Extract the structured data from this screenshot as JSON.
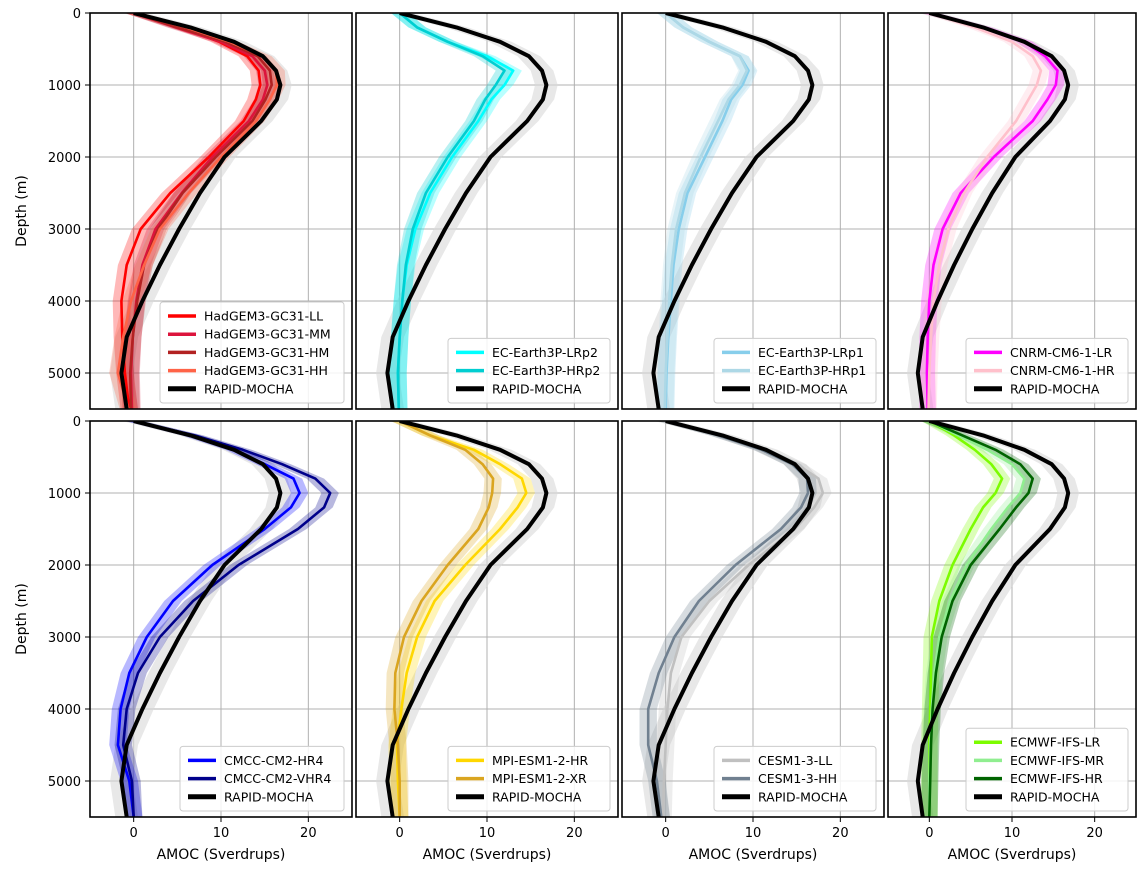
{
  "chart_data": {
    "type": "line",
    "xlabel": "AMOC (Sverdrups)",
    "ylabel": "Depth (m)",
    "xlim": [
      -5,
      25
    ],
    "ylim": [
      5500,
      0
    ],
    "xticks": [
      "0",
      "10",
      "20"
    ],
    "yticks": [
      "0",
      "1000",
      "2000",
      "3000",
      "4000",
      "5000"
    ],
    "grid": true,
    "legend_position": "lower-right",
    "reference": {
      "name": "RAPID-MOCHA",
      "color": "#000000",
      "depth": [
        0,
        200,
        400,
        600,
        800,
        1000,
        1200,
        1500,
        2000,
        2500,
        3000,
        3500,
        4000,
        4500,
        5000,
        5500
      ],
      "values": [
        0,
        6.5,
        11.5,
        14.8,
        16.3,
        16.8,
        16.4,
        14.6,
        10.4,
        7.6,
        5.2,
        3.0,
        1.0,
        -0.8,
        -1.4,
        -0.8
      ]
    },
    "panels": [
      {
        "row": 0,
        "col": 0,
        "series": [
          {
            "name": "HadGEM3-GC31-LL",
            "color": "#ff0000",
            "values": [
              0,
              5.3,
              9.8,
              13.0,
              14.3,
              14.5,
              14.0,
              12.6,
              8.6,
              4.2,
              0.8,
              -0.8,
              -1.4,
              -1.3,
              -1.0,
              -0.5
            ]
          },
          {
            "name": "HadGEM3-GC31-MM",
            "color": "#dc143c",
            "values": [
              0,
              4.8,
              10.0,
              13.6,
              15.0,
              15.3,
              14.8,
              13.2,
              9.0,
              5.5,
              2.5,
              1.0,
              0.3,
              -0.1,
              -0.3,
              -0.2
            ]
          },
          {
            "name": "HadGEM3-GC31-HM",
            "color": "#b22222",
            "values": [
              0,
              5.0,
              10.5,
              14.2,
              15.6,
              15.8,
              15.1,
              13.6,
              9.4,
              5.6,
              2.8,
              1.2,
              0.4,
              -0.1,
              -0.4,
              -0.3
            ]
          },
          {
            "name": "HadGEM3-GC31-HH",
            "color": "#ff6347",
            "values": [
              0,
              6.0,
              11.0,
              14.8,
              16.3,
              16.4,
              15.6,
              14.0,
              10.0,
              6.3,
              3.0,
              1.2,
              -0.3,
              -1.2,
              -1.8,
              -0.6
            ]
          }
        ]
      },
      {
        "row": 0,
        "col": 1,
        "series": [
          {
            "name": "EC-Earth3P-LRp2",
            "color": "#00ffff",
            "values": [
              0,
              2.0,
              5.5,
              10.0,
              13.0,
              12.0,
              10.5,
              9.0,
              6.0,
              3.5,
              1.8,
              0.8,
              0.3,
              0,
              -0.2,
              -0.1
            ]
          },
          {
            "name": "EC-Earth3P-HRp2",
            "color": "#00ced1",
            "values": [
              0,
              2.0,
              5.5,
              9.5,
              12.0,
              11.0,
              9.8,
              8.5,
              5.5,
              3.0,
              1.5,
              0.7,
              0.3,
              0,
              -0.2,
              -0.1
            ]
          }
        ]
      },
      {
        "row": 0,
        "col": 2,
        "series": [
          {
            "name": "EC-Earth3P-LRp1",
            "color": "#87ceeb",
            "values": [
              0,
              2.0,
              5.0,
              8.5,
              9.5,
              8.8,
              7.5,
              6.5,
              4.5,
              2.5,
              1.5,
              0.9,
              0.6,
              0.3,
              0.1,
              0
            ]
          },
          {
            "name": "EC-Earth3P-HRp1",
            "color": "#add8e6",
            "values": [
              0,
              2.0,
              5.0,
              8.5,
              9.3,
              8.5,
              7.2,
              6.0,
              4.0,
              2.2,
              1.2,
              0.7,
              0.4,
              0.2,
              0,
              -0.1
            ]
          }
        ]
      },
      {
        "row": 0,
        "col": 3,
        "series": [
          {
            "name": "CNRM-CM6-1-LR",
            "color": "#ff00ff",
            "values": [
              0,
              6.5,
              11.5,
              14.0,
              15.5,
              15.3,
              14.3,
              12.5,
              7.8,
              3.8,
              1.6,
              0.5,
              0,
              -0.2,
              -0.3,
              -0.2
            ]
          },
          {
            "name": "CNRM-CM6-1-HR",
            "color": "#ffc0cb",
            "values": [
              0,
              5.5,
              10.0,
              12.5,
              13.5,
              13.0,
              12.0,
              10.5,
              7.0,
              4.2,
              2.3,
              1.2,
              0.5,
              0.2,
              0,
              -0.1
            ]
          }
        ]
      },
      {
        "row": 1,
        "col": 0,
        "series": [
          {
            "name": "CMCC-CM2-HR4",
            "color": "#0000ff",
            "values": [
              0,
              6.5,
              11.5,
              15.0,
              18.3,
              19.0,
              18.0,
              15.0,
              9.0,
              4.5,
              1.5,
              -0.5,
              -1.5,
              -1.8,
              -0.5,
              0
            ]
          },
          {
            "name": "CMCC-CM2-VHR4",
            "color": "#00008b",
            "values": [
              0,
              7.0,
              12.5,
              17.0,
              20.8,
              22.5,
              21.8,
              18.8,
              12.0,
              6.8,
              3.0,
              0.5,
              -0.8,
              -1.2,
              -0.2,
              0
            ]
          }
        ]
      },
      {
        "row": 1,
        "col": 1,
        "series": [
          {
            "name": "MPI-ESM1-2-HR",
            "color": "#ffd700",
            "values": [
              0,
              3.5,
              8.5,
              11.5,
              14.0,
              14.5,
              13.5,
              11.5,
              7.5,
              4.0,
              2.0,
              0.8,
              0.2,
              -0.3,
              -0.2,
              0
            ]
          },
          {
            "name": "MPI-ESM1-2-XR",
            "color": "#daa520",
            "values": [
              0,
              3.5,
              7.5,
              9.5,
              10.7,
              10.6,
              10.2,
              9.0,
              5.5,
              2.5,
              0.5,
              -0.5,
              -0.6,
              -0.2,
              0,
              0
            ]
          }
        ]
      },
      {
        "row": 1,
        "col": 2,
        "series": [
          {
            "name": "CESM1-3-LL",
            "color": "#c0c0c0",
            "values": [
              0,
              6.0,
              11.0,
              15.0,
              17.5,
              18.0,
              17.0,
              14.8,
              9.5,
              5.0,
              1.8,
              0.6,
              0.2,
              0,
              -0.2,
              -0.3
            ]
          },
          {
            "name": "CESM1-3-HH",
            "color": "#708090",
            "values": [
              0,
              6.0,
              11.0,
              14.5,
              16.2,
              16.3,
              15.5,
              13.2,
              8.0,
              3.8,
              1.0,
              -0.8,
              -2.0,
              -2.0,
              -1.0,
              -0.5
            ]
          }
        ]
      },
      {
        "row": 1,
        "col": 3,
        "series": [
          {
            "name": "ECMWF-IFS-LR",
            "color": "#7cfc00",
            "values": [
              0,
              3.0,
              5.5,
              7.5,
              8.8,
              8.0,
              6.5,
              5.0,
              2.8,
              1.2,
              0.3,
              0.2,
              0.1,
              0,
              0,
              0
            ]
          },
          {
            "name": "ECMWF-IFS-MR",
            "color": "#90ee90",
            "values": [
              0,
              3.5,
              7.0,
              10.0,
              11.5,
              11.0,
              9.5,
              7.5,
              4.5,
              2.5,
              1.2,
              0.6,
              0.3,
              0.1,
              0,
              0
            ]
          },
          {
            "name": "ECMWF-IFS-HR",
            "color": "#006400",
            "values": [
              0,
              4.0,
              8.0,
              11.0,
              12.5,
              12.0,
              10.5,
              8.5,
              5.0,
              2.8,
              1.5,
              0.8,
              0.4,
              0.2,
              0.1,
              0
            ]
          }
        ]
      }
    ]
  }
}
